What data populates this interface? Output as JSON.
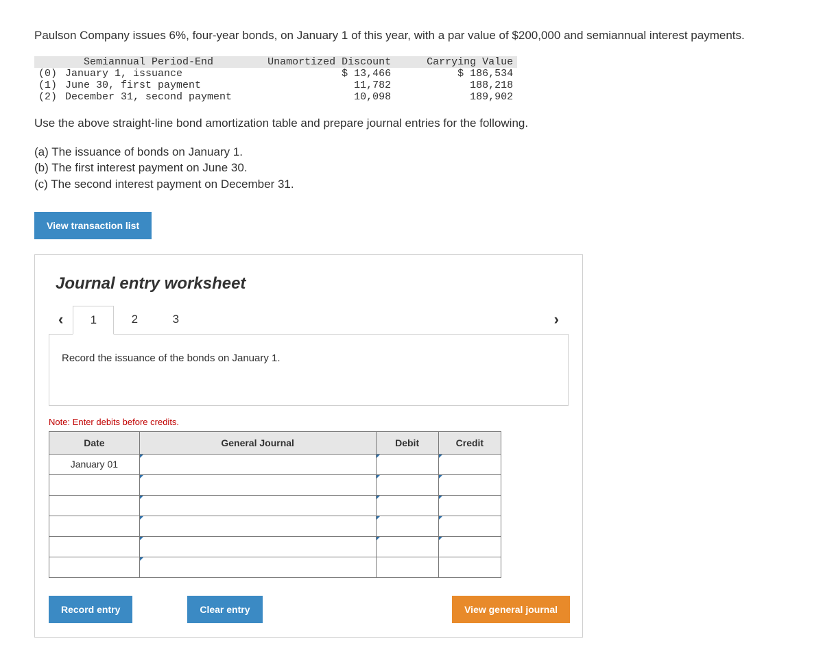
{
  "intro": "Paulson Company issues 6%, four-year bonds, on January 1 of this year, with a par value of $200,000 and semiannual interest payments.",
  "amort": {
    "headers": [
      "Semiannual Period-End",
      "Unamortized Discount",
      "Carrying Value"
    ],
    "rows": [
      {
        "idx": "(0)",
        "period": "January 1, issuance",
        "discount": "$ 13,466",
        "carrying": "$ 186,534"
      },
      {
        "idx": "(1)",
        "period": "June 30, first payment",
        "discount": "11,782",
        "carrying": "188,218"
      },
      {
        "idx": "(2)",
        "period": "December 31, second payment",
        "discount": "10,098",
        "carrying": "189,902"
      }
    ]
  },
  "instruction": "Use the above straight-line bond amortization table and prepare journal entries for the following.",
  "subparts": {
    "a": "(a) The issuance of bonds on January 1.",
    "b": "(b) The first interest payment on June 30.",
    "c": "(c) The second interest payment on December 31."
  },
  "buttons": {
    "view_list": "View transaction list",
    "record": "Record entry",
    "clear": "Clear entry",
    "view_gj": "View general journal"
  },
  "worksheet": {
    "title": "Journal entry worksheet",
    "tabs": [
      "1",
      "2",
      "3"
    ],
    "active_tab": 0,
    "prompt": "Record the issuance of the bonds on January 1.",
    "note": "Note: Enter debits before credits.",
    "columns": [
      "Date",
      "General Journal",
      "Debit",
      "Credit"
    ],
    "date_value": "January 01"
  },
  "colors": {
    "blue_btn": "#3b8ac4",
    "orange_btn": "#e88a2a",
    "header_bg": "#e6e6e6",
    "note_red": "#c00000",
    "border": "#7a7a7a"
  }
}
